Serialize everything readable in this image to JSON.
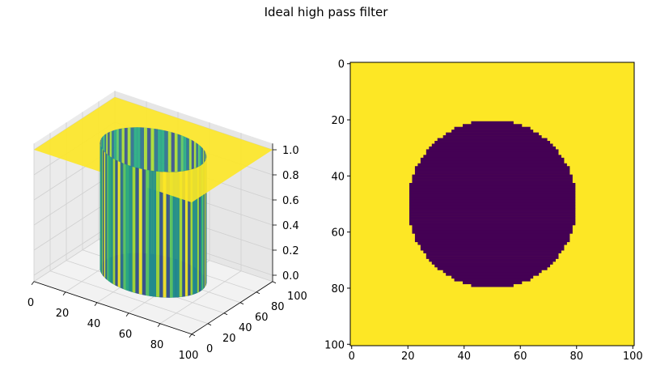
{
  "figure": {
    "suptitle": "Ideal high pass filter"
  },
  "chart_data": [
    {
      "type": "surface3d",
      "description_of_data": "Ideal high pass filter mask H(u,v): 0 inside a circle of radius ~30 centred at (50,50), 1 outside",
      "grid_size": 101,
      "center": [
        50,
        50
      ],
      "cutoff_radius": 30,
      "x_ticks": [
        0,
        20,
        40,
        60,
        80,
        100
      ],
      "y_ticks": [
        0,
        20,
        40,
        60,
        80,
        100
      ],
      "z_ticks": [
        0.0,
        0.2,
        0.4,
        0.6,
        0.8,
        1.0
      ],
      "z_tick_labels": [
        "0.0",
        "0.2",
        "0.4",
        "0.6",
        "0.8",
        "1.0"
      ],
      "xlim": [
        0,
        100
      ],
      "ylim": [
        0,
        100
      ],
      "zlim": [
        0.0,
        1.0
      ],
      "colormap": "viridis",
      "grid": true
    },
    {
      "type": "heatmap",
      "grid_size": 101,
      "center": [
        50,
        50
      ],
      "cutoff_radius": 30,
      "inside_value": 0,
      "outside_value": 1,
      "inside_color": "#440154",
      "outside_color": "#fde725",
      "x_ticks": [
        0,
        20,
        40,
        60,
        80,
        100
      ],
      "y_ticks": [
        0,
        20,
        40,
        60,
        80,
        100
      ],
      "xlim": [
        0,
        100
      ],
      "ylim": [
        100,
        0
      ]
    }
  ]
}
